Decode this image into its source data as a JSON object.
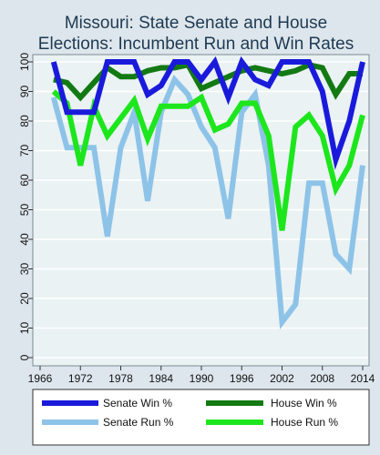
{
  "chart_data": {
    "type": "line",
    "title_lines": [
      "Missouri: State Senate and House",
      "Elections: Incumbent Run and Win Rates"
    ],
    "xlabel": "",
    "ylabel": "",
    "xlim": [
      1966,
      2014
    ],
    "ylim": [
      0,
      100
    ],
    "x_ticks": [
      1966,
      1972,
      1978,
      1984,
      1990,
      1996,
      2002,
      2008,
      2014
    ],
    "y_ticks": [
      0,
      10,
      20,
      30,
      40,
      50,
      60,
      70,
      80,
      90,
      100
    ],
    "grid": true,
    "legend_position": "bottom",
    "x": [
      1968,
      1970,
      1972,
      1974,
      1976,
      1978,
      1980,
      1982,
      1984,
      1986,
      1988,
      1990,
      1992,
      1994,
      1996,
      1998,
      2000,
      2002,
      2004,
      2006,
      2008,
      2010,
      2012,
      2014
    ],
    "series": [
      {
        "name": "Senate Win %",
        "color": "#1a1adb",
        "width": 6,
        "values": [
          100,
          83,
          83,
          83,
          100,
          100,
          100,
          89,
          92,
          100,
          100,
          94,
          100,
          88,
          100,
          94,
          92,
          100,
          100,
          100,
          90,
          67,
          80,
          100
        ]
      },
      {
        "name": "House Win %",
        "color": "#137a13",
        "width": 6,
        "values": [
          94,
          93,
          88,
          93,
          98,
          95,
          95,
          97,
          98,
          98,
          99,
          91,
          93,
          95,
          97,
          98,
          97,
          96,
          97,
          99,
          98,
          89,
          96,
          96
        ]
      },
      {
        "name": "Senate Run %",
        "color": "#8ec3e8",
        "width": 6,
        "values": [
          88,
          71,
          71,
          71,
          41,
          71,
          83,
          53,
          83,
          94,
          89,
          78,
          71,
          47,
          83,
          89,
          65,
          12,
          18,
          59,
          59,
          35,
          30,
          65
        ]
      },
      {
        "name": "House Run %",
        "color": "#1de61d",
        "width": 6,
        "values": [
          90,
          86,
          65,
          85,
          75,
          81,
          87,
          74,
          85,
          85,
          85,
          88,
          77,
          79,
          86,
          86,
          75,
          43,
          78,
          82,
          75,
          57,
          65,
          82
        ]
      }
    ],
    "legend_order": [
      "Senate Win %",
      "House Win %",
      "Senate Run %",
      "House Run %"
    ]
  }
}
